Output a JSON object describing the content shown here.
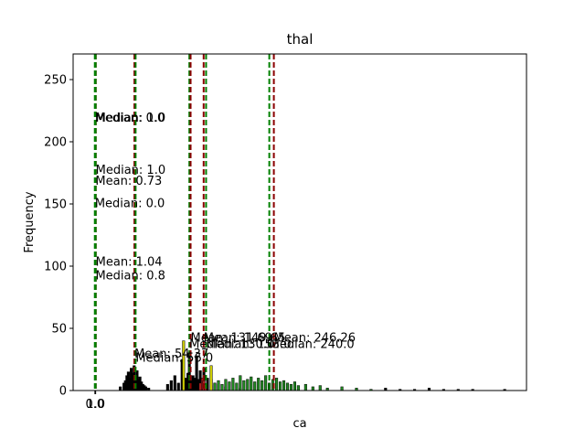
{
  "chart_data": {
    "type": "histogram",
    "title": "thal",
    "x_label": "ca",
    "y_label": "Frequency",
    "xlim": [
      -30,
      594
    ],
    "ylim": [
      0,
      270.6
    ],
    "xticks": [
      {
        "value": 0,
        "label": "0.0"
      },
      {
        "value": 1,
        "label": "1.0"
      }
    ],
    "yticks": [
      0,
      50,
      100,
      150,
      200,
      250
    ],
    "series": [
      {
        "color": "#000000",
        "x": [
          35,
          40,
          42,
          44,
          46,
          48,
          50,
          52,
          54,
          56,
          58,
          60,
          62,
          64,
          66,
          68,
          70,
          74,
          100,
          105,
          110,
          115,
          120,
          125,
          128,
          130,
          132,
          135,
          138,
          140,
          142,
          145,
          150,
          155,
          160,
          165,
          170,
          180,
          200,
          400,
          420,
          440,
          460,
          480,
          500,
          520,
          564
        ],
        "values": [
          3,
          6,
          8,
          12,
          15,
          10,
          18,
          14,
          20,
          12,
          16,
          9,
          11,
          7,
          5,
          4,
          3,
          2,
          5,
          8,
          12,
          6,
          25,
          10,
          14,
          30,
          8,
          12,
          10,
          28,
          9,
          16,
          18,
          10,
          9,
          6,
          5,
          3,
          2,
          2,
          1,
          1,
          2,
          1,
          1,
          1,
          1
        ]
      },
      {
        "color": "#228b22",
        "x": [
          160,
          165,
          170,
          175,
          180,
          185,
          190,
          195,
          200,
          205,
          210,
          215,
          220,
          225,
          230,
          235,
          240,
          245,
          250,
          255,
          260,
          265,
          270,
          275,
          280,
          290,
          300,
          310,
          320,
          340,
          360,
          380
        ],
        "values": [
          4,
          6,
          8,
          5,
          9,
          7,
          10,
          6,
          12,
          8,
          9,
          11,
          7,
          10,
          8,
          12,
          6,
          9,
          10,
          7,
          8,
          6,
          5,
          7,
          4,
          5,
          3,
          4,
          2,
          3,
          2,
          1
        ]
      },
      {
        "color": "#b22222",
        "x": [
          145,
          148,
          150,
          152
        ],
        "values": [
          6,
          10,
          8,
          5
        ]
      },
      {
        "color": "#cccc00",
        "x": [
          122,
          160
        ],
        "values": [
          40,
          20
        ]
      }
    ],
    "annotations": [
      {
        "text": "Median: 0.0",
        "x": 0,
        "y": 220,
        "color": "#008000"
      },
      {
        "text": "Median: 1.0",
        "x": 1,
        "y": 220,
        "color": "#008000"
      },
      {
        "text": "Median: 1.0",
        "x": 1,
        "y": 178,
        "color": "#008000"
      },
      {
        "text": "Mean: 0.73",
        "x": 0.73,
        "y": 169,
        "color": "#8b0000"
      },
      {
        "text": "Median: 0.0",
        "x": 0,
        "y": 151,
        "color": "#008000"
      },
      {
        "text": "Mean: 1.04",
        "x": 1.04,
        "y": 104,
        "color": "#8b0000"
      },
      {
        "text": "Median: 0.8",
        "x": 0.8,
        "y": 93,
        "color": "#008000"
      },
      {
        "text": "Mean: 54.37",
        "x": 54.37,
        "y": 30,
        "color": "#8b0000"
      },
      {
        "text": "Median: 56.0",
        "x": 56,
        "y": 27,
        "color": "#008000"
      },
      {
        "text": "Median: 130.0",
        "x": 130,
        "y": 38,
        "color": "#008000"
      },
      {
        "text": "Mean: 131.69",
        "x": 131.69,
        "y": 43,
        "color": "#8b0000"
      },
      {
        "text": "Mean: 149.65",
        "x": 149.65,
        "y": 43,
        "color": "#8b0000"
      },
      {
        "text": "Median: 153.0",
        "x": 153,
        "y": 38,
        "color": "#008000"
      },
      {
        "text": "Mean: 246.26",
        "x": 246.26,
        "y": 43,
        "color": "#8b0000"
      },
      {
        "text": "Median: 240.0",
        "x": 240,
        "y": 38,
        "color": "#008000"
      }
    ]
  }
}
